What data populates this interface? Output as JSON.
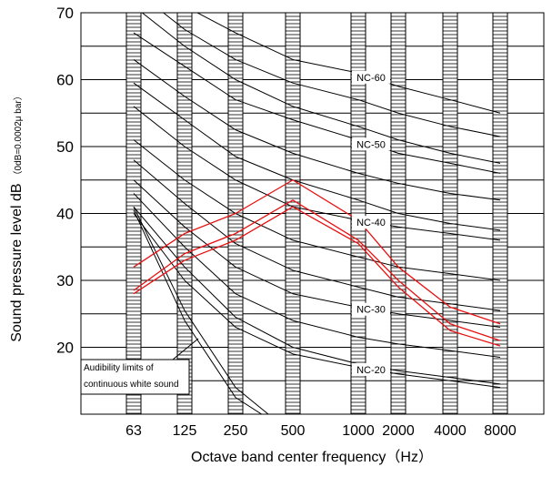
{
  "chart_data": {
    "type": "line",
    "title": "",
    "xlabel": "Octave band center frequency（Hz）",
    "ylabel": "Sound pressure level dB",
    "ylabel_unit": "（0dB=0.0002μ bar）",
    "categories": [
      "63",
      "125",
      "250",
      "500",
      "1000",
      "2000",
      "4000",
      "8000"
    ],
    "ylim": [
      7,
      70
    ],
    "yticks": [
      20,
      30,
      40,
      50,
      60,
      70
    ],
    "grid": true,
    "nc_curves": [
      {
        "name": "NC-60",
        "values": [
          77,
          71,
          67,
          63,
          61,
          59,
          57,
          55
        ]
      },
      {
        "name": "",
        "values": [
          73.5,
          67.5,
          63,
          59.5,
          57,
          55,
          53,
          51.5
        ]
      },
      {
        "name": "",
        "values": [
          71,
          65,
          60,
          56,
          53,
          51,
          49,
          47.5
        ]
      },
      {
        "name": "NC-50",
        "values": [
          67,
          62,
          57,
          54,
          51,
          49,
          47.5,
          46
        ]
      },
      {
        "name": "",
        "values": [
          63,
          57.5,
          52.5,
          49,
          46,
          44.5,
          43,
          42
        ]
      },
      {
        "name": "",
        "values": [
          59.5,
          54,
          48.5,
          45,
          42,
          40,
          38.5,
          37.5
        ]
      },
      {
        "name": "NC-40",
        "values": [
          56,
          50,
          45,
          41,
          39,
          38,
          37,
          36
        ]
      },
      {
        "name": "",
        "values": [
          51,
          45,
          40,
          36,
          33.5,
          32,
          31,
          30
        ]
      },
      {
        "name": "",
        "values": [
          48,
          41.5,
          35.5,
          31.5,
          29,
          27.5,
          26.5,
          25.5
        ]
      },
      {
        "name": "NC-30",
        "values": [
          45,
          38,
          32,
          28,
          26,
          25,
          24,
          23
        ]
      },
      {
        "name": "",
        "values": [
          43,
          35,
          28,
          24,
          21.5,
          20.5,
          19.5,
          18.5
        ]
      },
      {
        "name": "",
        "values": [
          41,
          32,
          24.5,
          20,
          17.5,
          16.5,
          15.5,
          14.5
        ]
      },
      {
        "name": "NC-20",
        "values": [
          40,
          30,
          23,
          19,
          17,
          16,
          15,
          14
        ]
      }
    ],
    "audibility_curves": [
      {
        "name": "",
        "x": [
          "63",
          "125",
          "250",
          "500"
        ],
        "values": [
          41,
          25.5,
          14,
          7
        ]
      },
      {
        "name": "",
        "x": [
          "63",
          "125",
          "250",
          "500"
        ],
        "values": [
          40.5,
          24,
          12.5,
          7
        ]
      }
    ],
    "measured_series": [
      {
        "name": "",
        "color": "#e81010",
        "values": [
          32,
          37,
          40,
          45,
          39,
          32,
          26,
          23.5
        ]
      },
      {
        "name": "",
        "color": "#e81010",
        "values": [
          28.5,
          34,
          37,
          42,
          36,
          30,
          23.5,
          21
        ]
      },
      {
        "name": "",
        "color": "#e81010",
        "values": [
          28,
          33,
          36,
          41,
          35.5,
          29,
          22.5,
          20.2
        ]
      }
    ],
    "annotation": {
      "line1": "Audibility limits of",
      "line2": "continuous white sound"
    }
  }
}
